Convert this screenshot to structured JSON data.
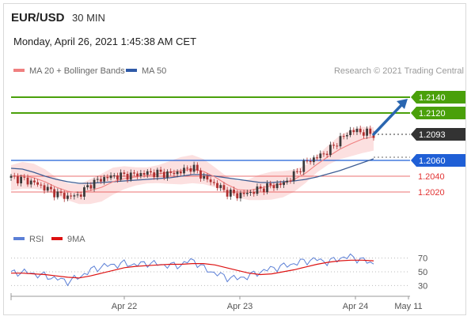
{
  "header": {
    "symbol": "EUR/USD",
    "timeframe": "30 MIN",
    "datetime": "Monday, April 26, 2021 1:45:38 AM CET",
    "credit": "Research © 2021 Trading Central"
  },
  "legend": {
    "main": [
      {
        "label": "MA 20 + Bollinger Bands",
        "color": "#f08080"
      },
      {
        "label": "MA 50",
        "color": "#2f5aa8"
      }
    ],
    "rsi": [
      {
        "label": "RSI",
        "color": "#5b7fd6"
      },
      {
        "label": "9MA",
        "color": "#dd1111"
      }
    ]
  },
  "colors": {
    "resistance": "#4aa00a",
    "pivot": "#1f5fd6",
    "support": "#e23333",
    "current": "#333333",
    "arrow": "#2a66b0",
    "candle_up": "#3a3a3a",
    "candle_down": "#b03030",
    "bb_fill": "#fbd6d6"
  },
  "chart_data": [
    {
      "type": "line",
      "panel": "price",
      "xaxis": {
        "ticks": [
          "Apr 22",
          "Apr 23",
          "Apr 24",
          "May 11"
        ]
      },
      "ylim": [
        1.1985,
        1.2165
      ],
      "levels": [
        {
          "value": 1.214,
          "label": "1.2140",
          "kind": "resistance"
        },
        {
          "value": 1.212,
          "label": "1.2120",
          "kind": "resistance"
        },
        {
          "value": 1.2093,
          "label": "1.2093",
          "kind": "current"
        },
        {
          "value": 1.206,
          "label": "1.2060",
          "kind": "pivot"
        },
        {
          "value": 1.204,
          "label": "1.2040",
          "kind": "support"
        },
        {
          "value": 1.202,
          "label": "1.2020",
          "kind": "support"
        }
      ],
      "series": [
        {
          "name": "MA 20 + Bollinger Bands",
          "values": [
            1.204,
            1.2041,
            1.2038,
            1.2033,
            1.2026,
            1.2021,
            1.2019,
            1.2022,
            1.2026,
            1.2033,
            1.2037,
            1.2039,
            1.2041,
            1.2043,
            1.2045,
            1.2047,
            1.2049,
            1.2046,
            1.2039,
            1.203,
            1.2023,
            1.2022,
            1.2025,
            1.2028,
            1.2031,
            1.2036,
            1.2044,
            1.2055,
            1.2065,
            1.2074,
            1.2081,
            1.2087,
            1.209
          ]
        },
        {
          "name": "MA 50",
          "values": [
            1.205,
            1.2049,
            1.2045,
            1.204,
            1.2036,
            1.2033,
            1.2031,
            1.2031,
            1.2032,
            1.2033,
            1.2034,
            1.2035,
            1.2036,
            1.2037,
            1.2038,
            1.204,
            1.2042,
            1.2042,
            1.204,
            1.2038,
            1.2036,
            1.2034,
            1.2032,
            1.2032,
            1.2033,
            1.2034,
            1.2036,
            1.2039,
            1.2043,
            1.2047,
            1.2052,
            1.2057,
            1.2062
          ]
        },
        {
          "name": "Price",
          "values": [
            1.2038,
            1.2036,
            1.2032,
            1.2025,
            1.2018,
            1.2014,
            1.2016,
            1.203,
            1.2037,
            1.204,
            1.2041,
            1.2042,
            1.2044,
            1.2044,
            1.2043,
            1.2046,
            1.2052,
            1.2038,
            1.203,
            1.202,
            1.2016,
            1.2019,
            1.2024,
            1.2028,
            1.203,
            1.2042,
            1.2058,
            1.2064,
            1.2072,
            1.2086,
            1.2098,
            1.2096,
            1.2093
          ]
        }
      ],
      "forecast_arrow": {
        "from": 1.2093,
        "to": 1.214
      }
    },
    {
      "type": "line",
      "panel": "rsi",
      "ylim": [
        20,
        80
      ],
      "yticks": [
        70,
        50,
        30
      ],
      "series": [
        {
          "name": "RSI",
          "values": [
            48,
            50,
            47,
            44,
            40,
            36,
            42,
            52,
            58,
            60,
            62,
            60,
            63,
            61,
            59,
            60,
            68,
            55,
            48,
            42,
            40,
            44,
            50,
            55,
            58,
            62,
            66,
            68,
            64,
            70,
            72,
            67,
            62
          ]
        },
        {
          "name": "9MA",
          "values": [
            48,
            48,
            47,
            46,
            44,
            42,
            41,
            44,
            48,
            52,
            56,
            58,
            59,
            60,
            61,
            61,
            62,
            62,
            60,
            56,
            52,
            48,
            46,
            47,
            50,
            53,
            57,
            61,
            64,
            66,
            67,
            67,
            66
          ]
        }
      ]
    }
  ]
}
